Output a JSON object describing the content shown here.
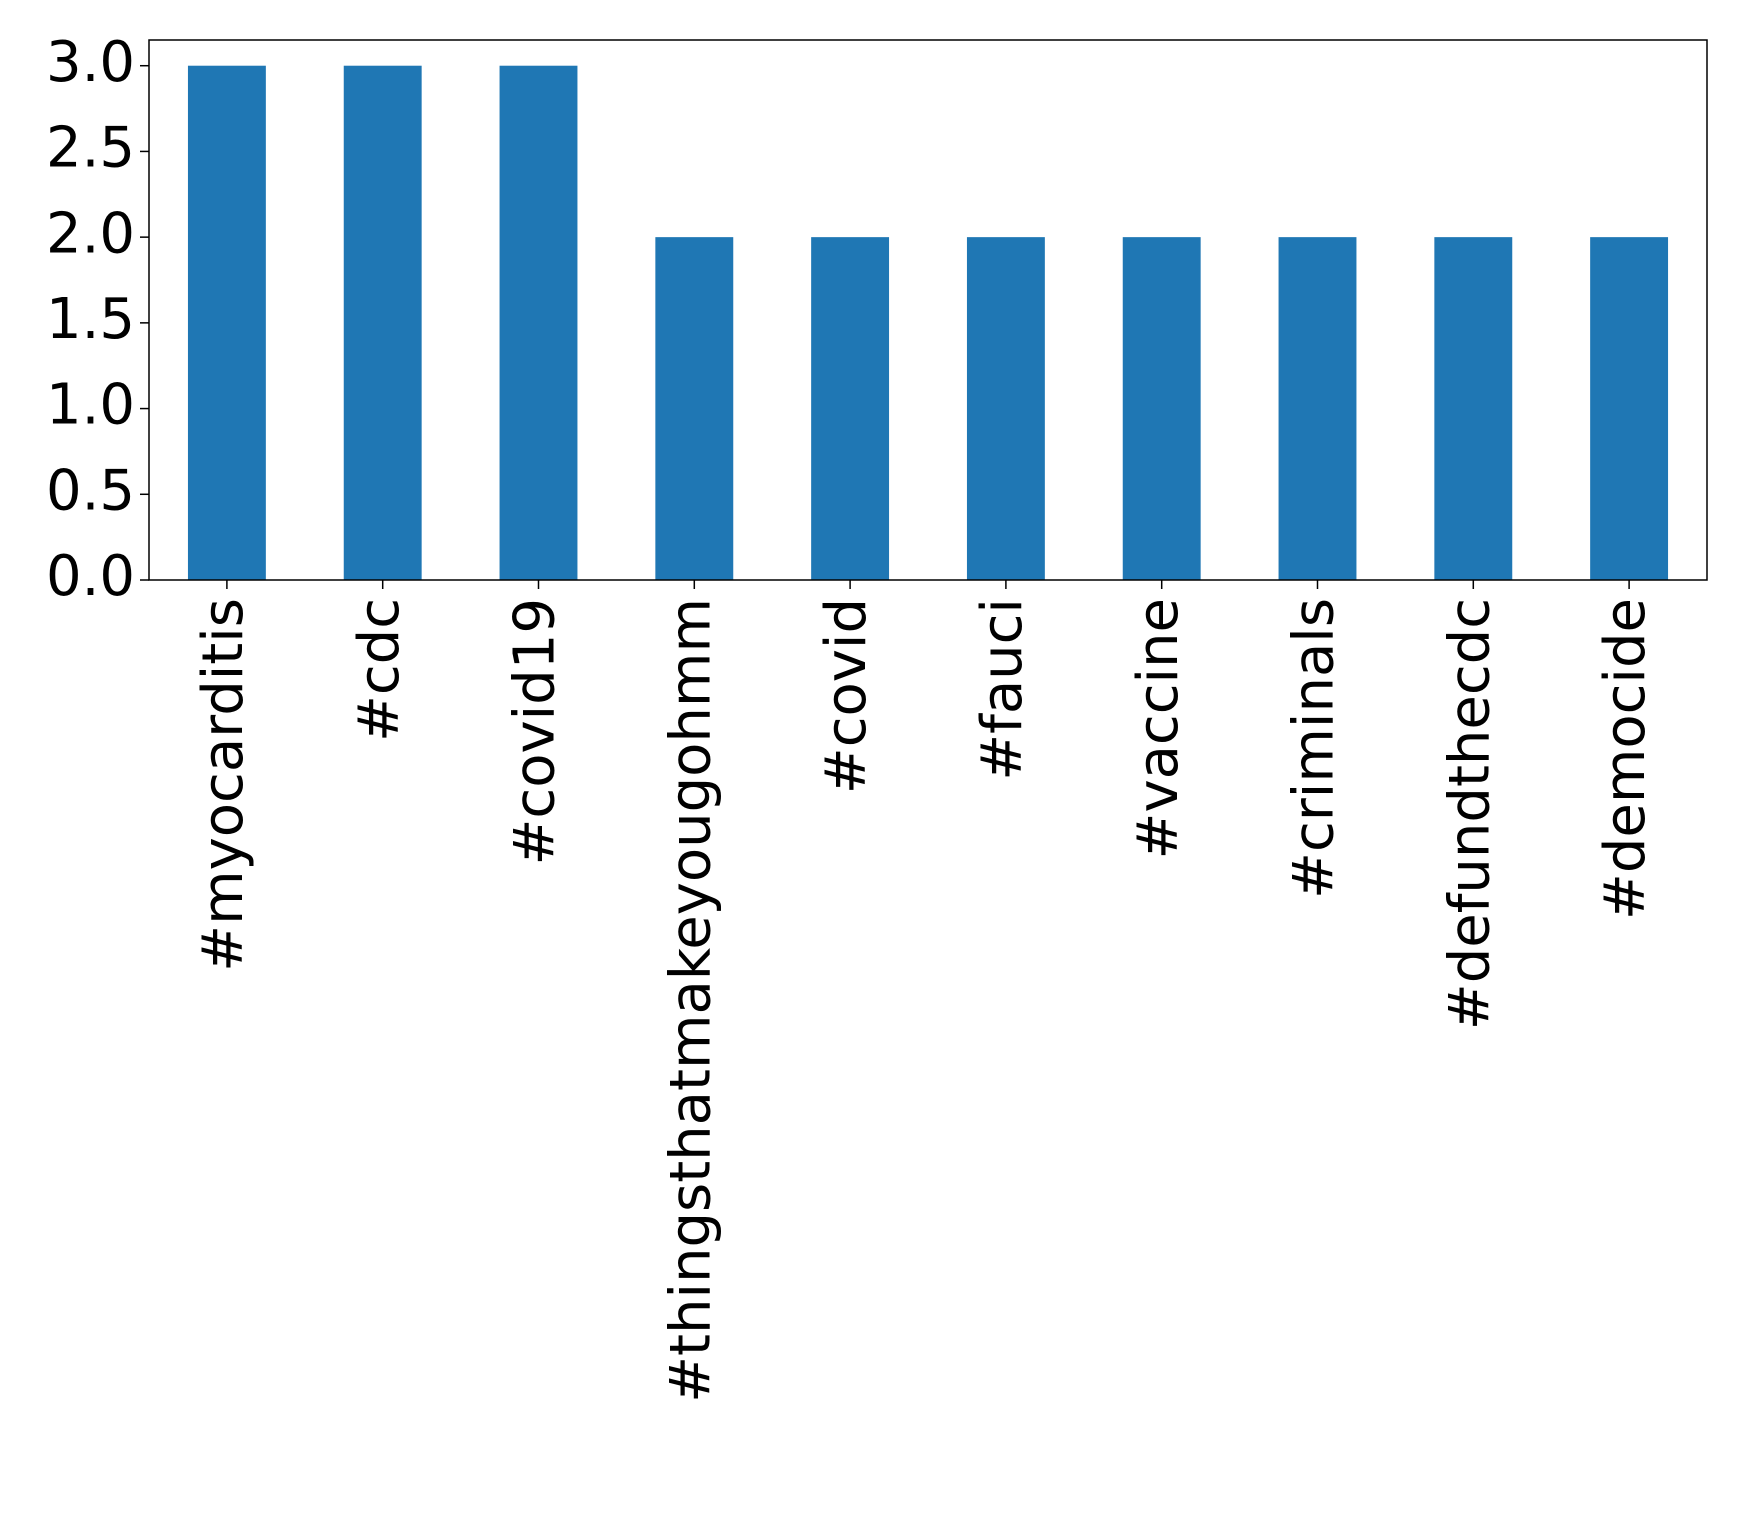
{
  "chart_data": {
    "type": "bar",
    "categories": [
      "#myocarditis",
      "#cdc",
      "#covid19",
      "#thingsthatmakeyougohmm",
      "#covid",
      "#fauci",
      "#vaccine",
      "#criminals",
      "#defundthecdc",
      "#democide"
    ],
    "values": [
      3,
      3,
      3,
      2,
      2,
      2,
      2,
      2,
      2,
      2
    ],
    "color": "#1f77b4",
    "ylim": [
      0,
      3.15
    ],
    "yticks": [
      {
        "value": 0,
        "label": "0.0"
      },
      {
        "value": 0.5,
        "label": "0.5"
      },
      {
        "value": 1,
        "label": "1.0"
      },
      {
        "value": 1.5,
        "label": "1.5"
      },
      {
        "value": 2,
        "label": "2.0"
      },
      {
        "value": 2.5,
        "label": "2.5"
      },
      {
        "value": 3,
        "label": "3.0"
      }
    ],
    "grid": false
  }
}
